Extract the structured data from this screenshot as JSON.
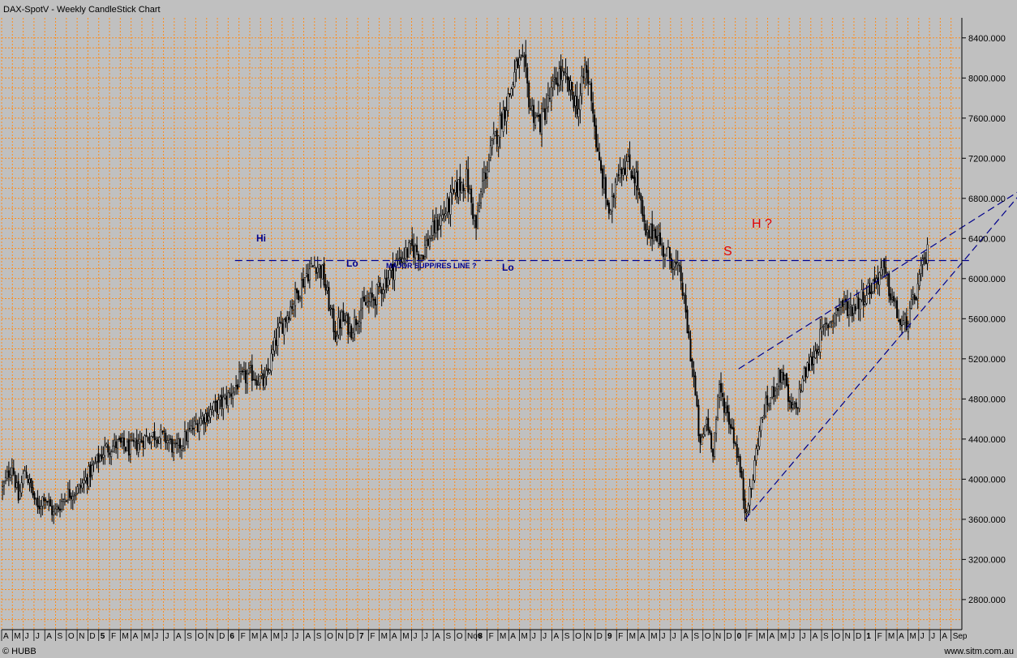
{
  "title": "DAX-SpotV - Weekly CandleStick Chart",
  "footer": {
    "left": "© HUBB",
    "right": "www.sitm.com.au"
  },
  "colors": {
    "background": "#c0c0c0",
    "grid": "#ff8c1a",
    "candle": "#000000",
    "trendline": "#00008b",
    "annotation_red": "#e00000"
  },
  "chart_data": {
    "type": "candlestick",
    "title": "DAX-SpotV - Weekly CandleStick Chart",
    "ylim": [
      2500,
      8600
    ],
    "y_ticks": [
      "8400.000",
      "8000.000",
      "7600.000",
      "7200.000",
      "6800.000",
      "6400.000",
      "6000.000",
      "5600.000",
      "5200.000",
      "4800.000",
      "4400.000",
      "4000.000",
      "3600.000",
      "3200.000",
      "2800.000"
    ],
    "y_tick_values": [
      8400,
      8000,
      7600,
      7200,
      6800,
      6400,
      6000,
      5600,
      5200,
      4800,
      4400,
      4000,
      3600,
      3200,
      2800
    ],
    "x_ticks": [
      "A",
      "M",
      "J",
      "J",
      "A",
      "S",
      "O",
      "N",
      "D",
      "5",
      "F",
      "M",
      "A",
      "M",
      "J",
      "J",
      "A",
      "S",
      "O",
      "N",
      "D",
      "6",
      "F",
      "M",
      "A",
      "M",
      "J",
      "J",
      "A",
      "S",
      "O",
      "N",
      "D",
      "7",
      "F",
      "M",
      "A",
      "M",
      "J",
      "J",
      "A",
      "S",
      "O",
      "Nov",
      "8",
      "F",
      "M",
      "A",
      "M",
      "J",
      "J",
      "A",
      "S",
      "O",
      "N",
      "D",
      "9",
      "F",
      "M",
      "A",
      "M",
      "J",
      "J",
      "A",
      "S",
      "O",
      "N",
      "D",
      "0",
      "F",
      "M",
      "A",
      "M",
      "J",
      "J",
      "A",
      "S",
      "O",
      "N",
      "D",
      "1",
      "F",
      "M",
      "A",
      "M",
      "J",
      "J",
      "A",
      "Sep"
    ],
    "year_ticks": [
      "5",
      "6",
      "7",
      "8",
      "9",
      "0",
      "1"
    ],
    "price_path": [
      [
        0,
        3900
      ],
      [
        6,
        4150
      ],
      [
        10,
        3800
      ],
      [
        14,
        4100
      ],
      [
        18,
        3900
      ],
      [
        22,
        3700
      ],
      [
        26,
        3850
      ],
      [
        32,
        3650
      ],
      [
        40,
        3850
      ],
      [
        48,
        3900
      ],
      [
        56,
        4100
      ],
      [
        64,
        4300
      ],
      [
        72,
        4350
      ],
      [
        80,
        4300
      ],
      [
        88,
        4400
      ],
      [
        96,
        4450
      ],
      [
        104,
        4380
      ],
      [
        108,
        4280
      ],
      [
        116,
        4450
      ],
      [
        124,
        4600
      ],
      [
        132,
        4700
      ],
      [
        140,
        4800
      ],
      [
        148,
        4980
      ],
      [
        156,
        5050
      ],
      [
        164,
        4950
      ],
      [
        168,
        5200
      ],
      [
        172,
        5450
      ],
      [
        178,
        5650
      ],
      [
        184,
        5850
      ],
      [
        190,
        6050
      ],
      [
        196,
        6150
      ],
      [
        200,
        6050
      ],
      [
        204,
        5750
      ],
      [
        208,
        5450
      ],
      [
        212,
        5600
      ],
      [
        218,
        5500
      ],
      [
        224,
        5700
      ],
      [
        232,
        5800
      ],
      [
        240,
        6000
      ],
      [
        248,
        6200
      ],
      [
        256,
        6300
      ],
      [
        262,
        6250
      ],
      [
        270,
        6500
      ],
      [
        278,
        6700
      ],
      [
        284,
        6900
      ],
      [
        290,
        7000
      ],
      [
        296,
        6500
      ],
      [
        300,
        6950
      ],
      [
        306,
        7300
      ],
      [
        312,
        7600
      ],
      [
        318,
        7900
      ],
      [
        322,
        8150
      ],
      [
        326,
        8100
      ],
      [
        330,
        7700
      ],
      [
        336,
        7550
      ],
      [
        342,
        7800
      ],
      [
        348,
        8050
      ],
      [
        354,
        7900
      ],
      [
        360,
        7700
      ],
      [
        364,
        8100
      ],
      [
        368,
        7850
      ],
      [
        372,
        7200
      ],
      [
        376,
        6900
      ],
      [
        380,
        6600
      ],
      [
        384,
        7100
      ],
      [
        390,
        7150
      ],
      [
        396,
        7000
      ],
      [
        402,
        6400
      ],
      [
        408,
        6500
      ],
      [
        412,
        6300
      ],
      [
        418,
        6200
      ],
      [
        424,
        6000
      ],
      [
        428,
        5500
      ],
      [
        432,
        5000
      ],
      [
        436,
        4300
      ],
      [
        440,
        4600
      ],
      [
        444,
        4300
      ],
      [
        448,
        4900
      ],
      [
        452,
        4700
      ],
      [
        456,
        4500
      ],
      [
        460,
        4200
      ],
      [
        464,
        3700
      ],
      [
        468,
        3900
      ],
      [
        472,
        4400
      ],
      [
        476,
        4700
      ],
      [
        480,
        4800
      ],
      [
        484,
        5000
      ],
      [
        488,
        5050
      ],
      [
        492,
        4700
      ],
      [
        496,
        4700
      ],
      [
        500,
        5000
      ],
      [
        506,
        5200
      ],
      [
        512,
        5450
      ],
      [
        518,
        5600
      ],
      [
        524,
        5750
      ],
      [
        530,
        5700
      ],
      [
        536,
        5800
      ],
      [
        542,
        5900
      ],
      [
        546,
        6000
      ],
      [
        550,
        6100
      ],
      [
        554,
        5900
      ],
      [
        558,
        5700
      ],
      [
        562,
        5500
      ],
      [
        566,
        5600
      ],
      [
        570,
        5800
      ],
      [
        574,
        6050
      ],
      [
        578,
        6250
      ]
    ],
    "support_resistance": {
      "level": 6180,
      "label": "MAJOR SUPP/RES LINE ?"
    },
    "annotations": [
      {
        "text": "Hi",
        "color": "blue"
      },
      {
        "text": "Lo",
        "color": "blue"
      },
      {
        "text": "Lo",
        "color": "blue"
      },
      {
        "text": "MAJOR SUPP/RES LINE ?",
        "color": "blue"
      },
      {
        "text": "S",
        "color": "red"
      },
      {
        "text": "H ?",
        "color": "red"
      }
    ],
    "wedge": {
      "upper": [
        [
          460,
          5100
        ],
        [
          640,
          6920
        ]
      ],
      "lower": [
        [
          464,
          3600
        ],
        [
          640,
          6920
        ]
      ]
    },
    "grid": true,
    "y_axis": "right"
  }
}
